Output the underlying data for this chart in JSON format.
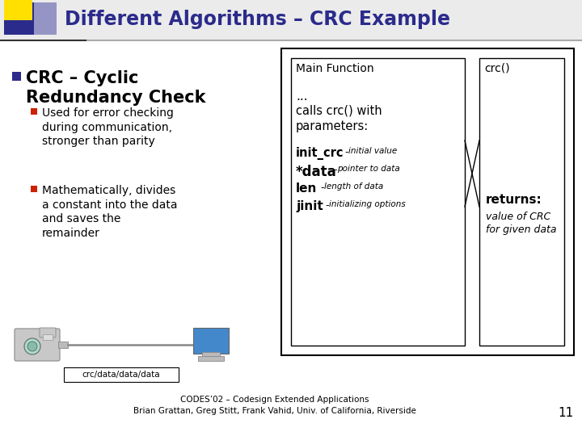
{
  "title": "Different Algorithms – CRC Example",
  "title_color": "#2B2B8C",
  "bg_color": "#FFFFFF",
  "bullet1_head": "CRC – Cyclic\nRedundancy Check",
  "bullet2": "Used for error checking\nduring communication,\nstronger than parity",
  "bullet3": "Mathematically, divides\na constant into the data\nand saves the\nremainder",
  "box_left_label": "Main Function",
  "box_right_label": "crc()",
  "network_label": "crc/data/data/data",
  "footer": "CODES’02 – Codesign Extended Applications\nBrian Grattan, Greg Stitt, Frank Vahid, Univ. of California, Riverside",
  "page_num": "11",
  "accent_blue": "#2B2B8C",
  "accent_yellow": "#FFE000",
  "bullet_red": "#CC2200",
  "text_dark": "#000000",
  "box_border": "#000000"
}
